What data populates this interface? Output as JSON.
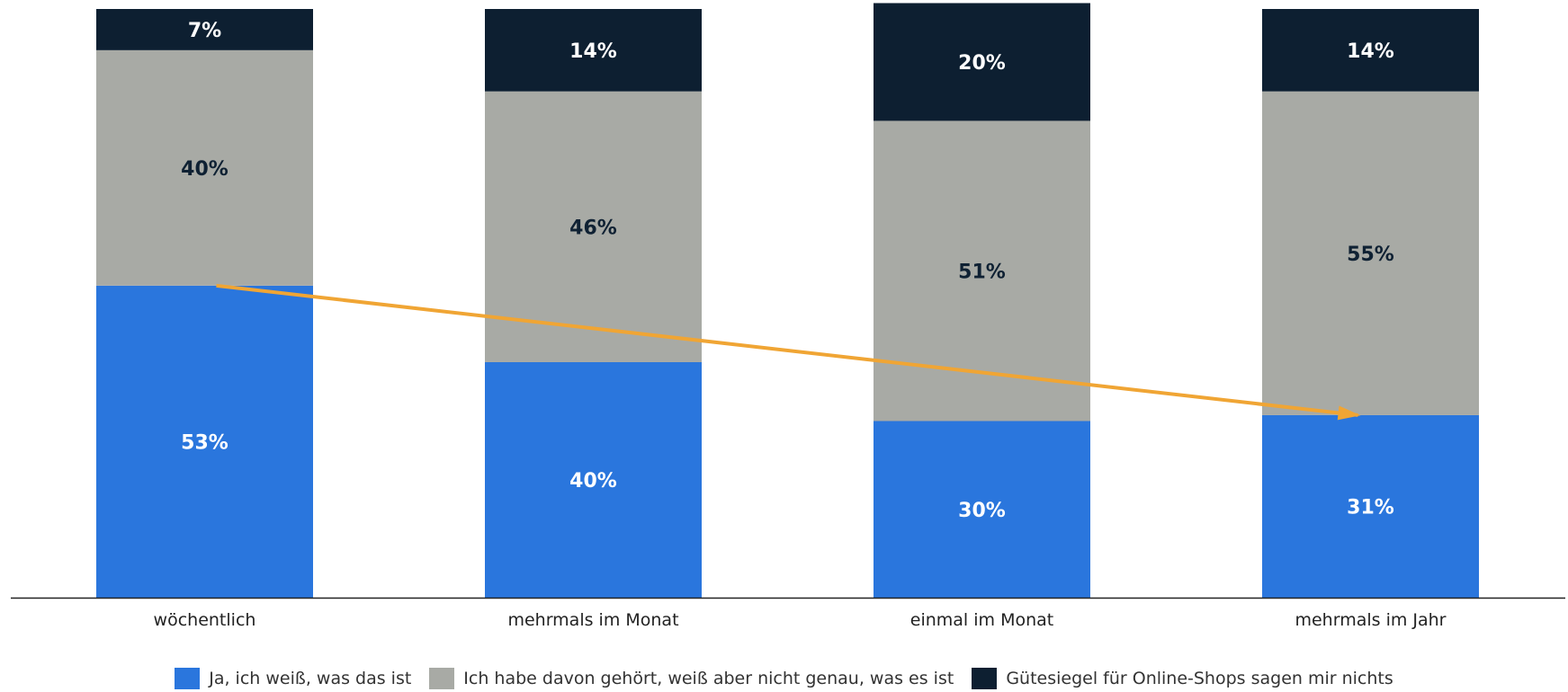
{
  "chart_data": {
    "type": "bar",
    "stacked": true,
    "categories": [
      "wöchentlich",
      "mehrmals im Monat",
      "einmal im Monat",
      "mehrmals im Jahr"
    ],
    "series": [
      {
        "name": "Ja, ich weiß, was das ist",
        "values": [
          53,
          40,
          30,
          31
        ],
        "labels": [
          "53%",
          "40%",
          "30%",
          "31%"
        ],
        "color": "#2a76dd",
        "label_color": "#ffffff"
      },
      {
        "name": "Ich habe davon gehört, weiß aber nicht genau, was es ist",
        "values": [
          40,
          46,
          51,
          55
        ],
        "labels": [
          "40%",
          "46%",
          "51%",
          "55%"
        ],
        "color": "#a8aaa5",
        "label_color": "#0f2133"
      },
      {
        "name": "Gütesiegel für Online-Shops sagen mir nichts",
        "values": [
          7,
          14,
          20,
          14
        ],
        "labels": [
          "7%",
          "14%",
          "20%",
          "14%"
        ],
        "color": "#0d1f31",
        "label_color": "#ffffff"
      }
    ],
    "ylim": [
      0,
      100
    ],
    "grid": false,
    "legend_position": "bottom-center",
    "annotation": {
      "type": "trend-arrow",
      "color": "#f0a534",
      "from_category": "wöchentlich",
      "from_value": 53,
      "to_category": "mehrmals im Jahr",
      "to_value": 31
    }
  }
}
